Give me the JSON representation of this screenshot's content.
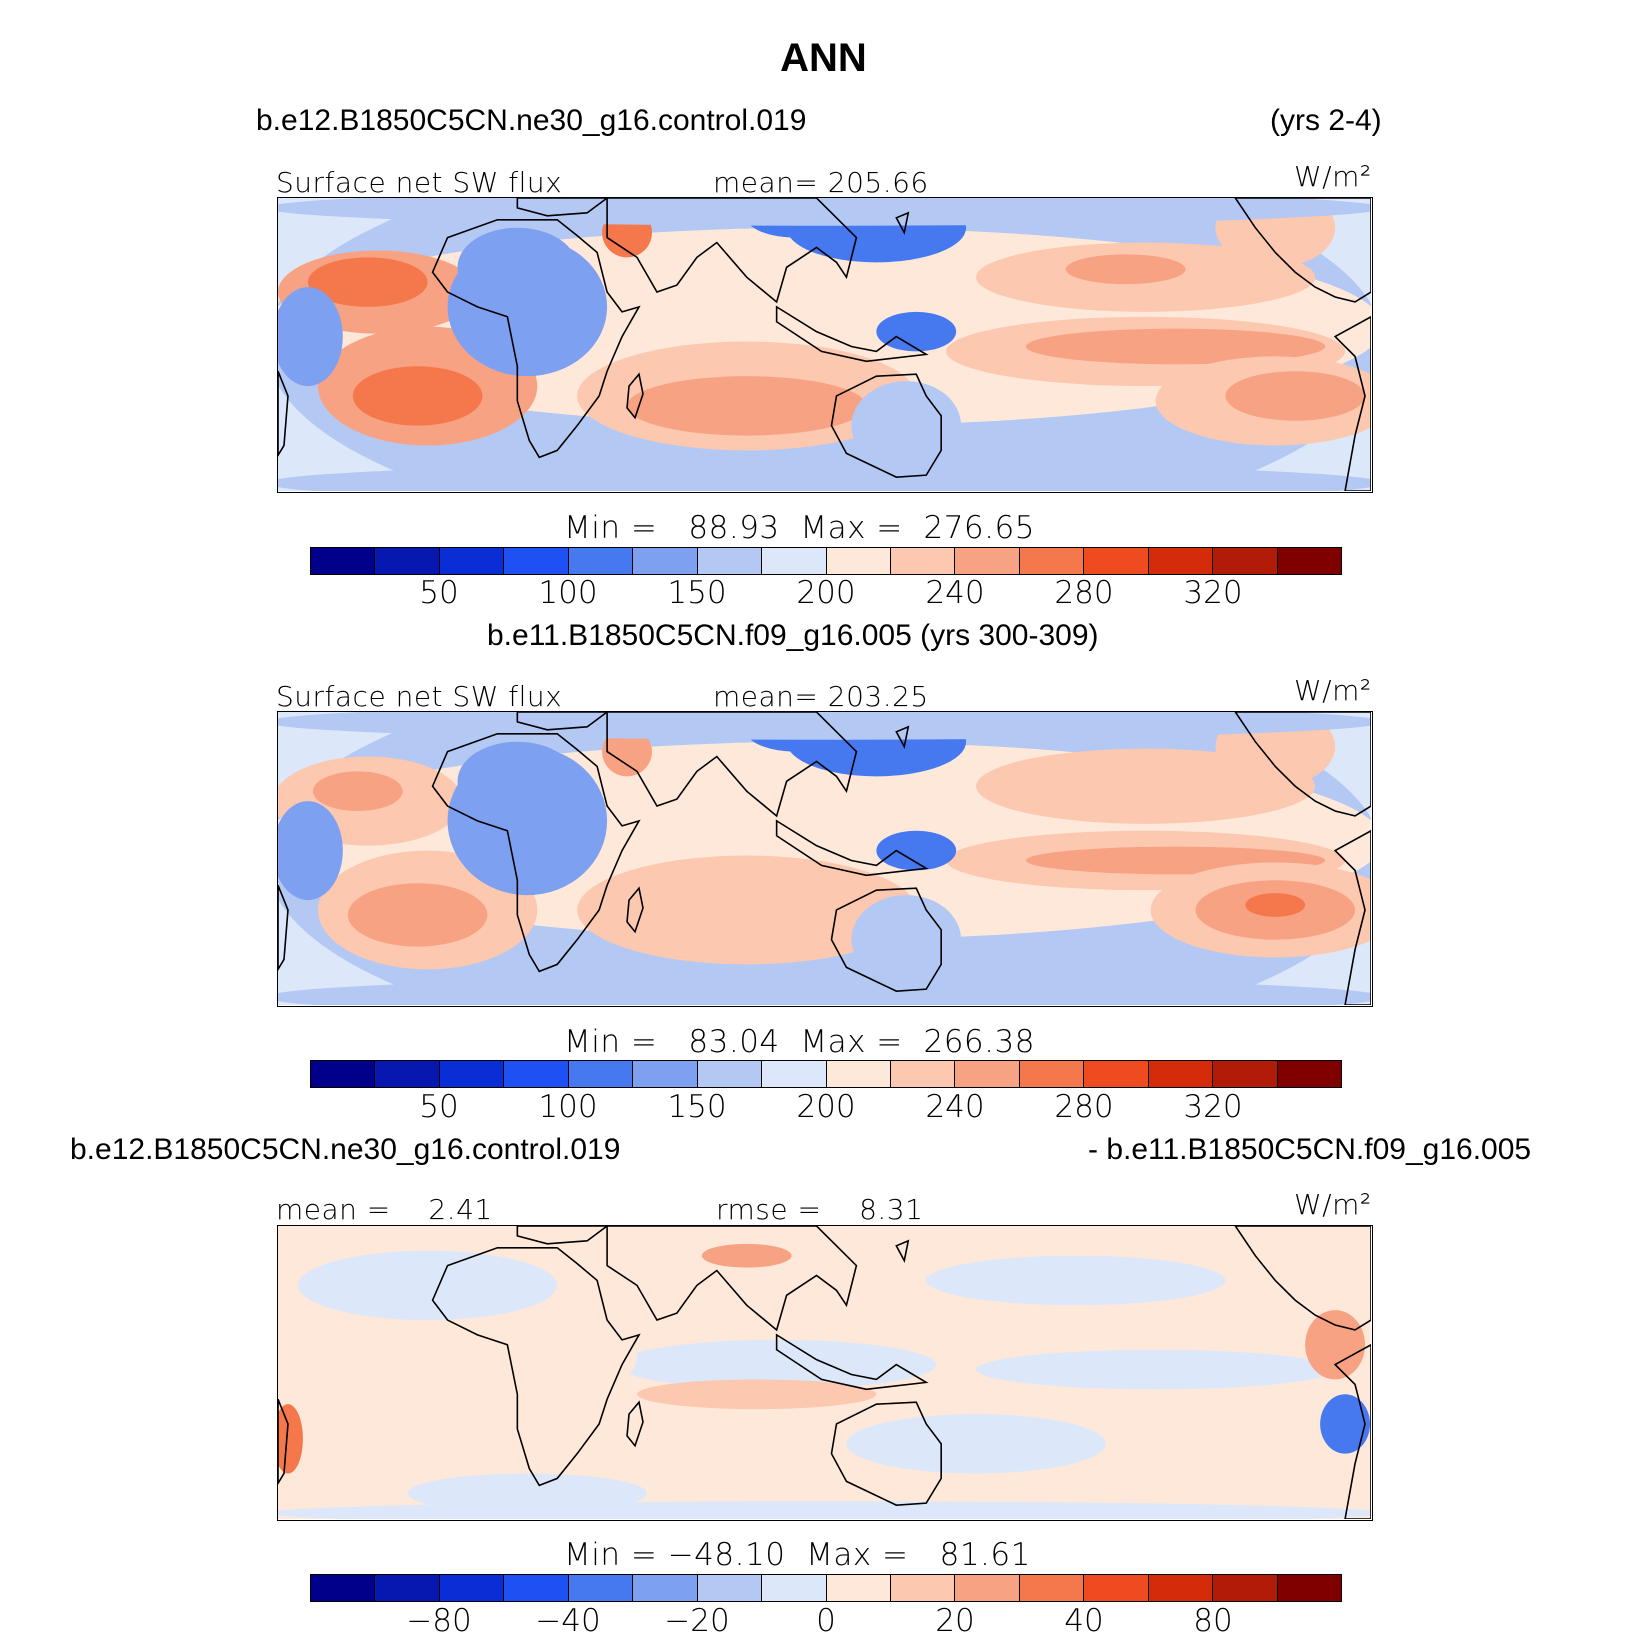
{
  "title": "ANN",
  "panels": [
    {
      "header_left": "b.e12.B1850C5CN.ne30_g16.control.019",
      "header_right": "(yrs 2-4)",
      "stat_left": "Surface net SW flux",
      "stat_mid": "mean= 205.66",
      "units": "W/m²",
      "minmax": "Min =   88.93  Max =  276.65",
      "colorbar_labels": [
        "50",
        "100",
        "150",
        "200",
        "240",
        "280",
        "320"
      ]
    },
    {
      "header_center": "b.e11.B1850C5CN.f09_g16.005 (yrs 300-309)",
      "stat_left": "Surface net SW flux",
      "stat_mid": "mean= 203.25",
      "units": "W/m²",
      "minmax": "Min =   83.04  Max =  266.38",
      "colorbar_labels": [
        "50",
        "100",
        "150",
        "200",
        "240",
        "280",
        "320"
      ]
    },
    {
      "header_left": "b.e12.B1850C5CN.ne30_g16.control.019",
      "header_right": "- b.e11.B1850C5CN.f09_g16.005",
      "stat_left": "mean =    2.41",
      "stat_mid": "rmse =    8.31",
      "units": "W/m²",
      "minmax": "Min = −48.10  Max =   81.61",
      "colorbar_labels": [
        "−80",
        "−40",
        "−20",
        "0",
        "20",
        "40",
        "80"
      ]
    }
  ],
  "chart_data": [
    {
      "type": "heatmap",
      "title": "Surface net SW flux",
      "units": "W/m²",
      "mean": 205.66,
      "min": 88.93,
      "max": 276.65,
      "colorbar_levels": [
        25,
        50,
        75,
        100,
        125,
        150,
        175,
        200,
        220,
        240,
        260,
        280,
        300,
        320,
        340
      ],
      "colorbar_tick_labels": [
        50,
        100,
        150,
        200,
        240,
        280,
        320
      ]
    },
    {
      "type": "heatmap",
      "title": "Surface net SW flux",
      "units": "W/m²",
      "mean": 203.25,
      "min": 83.04,
      "max": 266.38,
      "colorbar_levels": [
        25,
        50,
        75,
        100,
        125,
        150,
        175,
        200,
        220,
        240,
        260,
        280,
        300,
        320,
        340
      ],
      "colorbar_tick_labels": [
        50,
        100,
        150,
        200,
        240,
        280,
        320
      ]
    },
    {
      "type": "heatmap",
      "units": "W/m²",
      "mean": 2.41,
      "rmse": 8.31,
      "min": -48.1,
      "max": 81.61,
      "colorbar_tick_labels": [
        -80,
        -40,
        -20,
        0,
        20,
        40,
        80
      ]
    }
  ],
  "colors": {
    "scale": [
      "#00008a",
      "#0618b0",
      "#0a2ed6",
      "#1e50f4",
      "#4678f0",
      "#7ea0f0",
      "#b4c8f4",
      "#dce8fa",
      "#fde8da",
      "#fcc8b0",
      "#f8a284",
      "#f4784c",
      "#ee4c20",
      "#d42c0a",
      "#b01c08",
      "#800000"
    ]
  }
}
